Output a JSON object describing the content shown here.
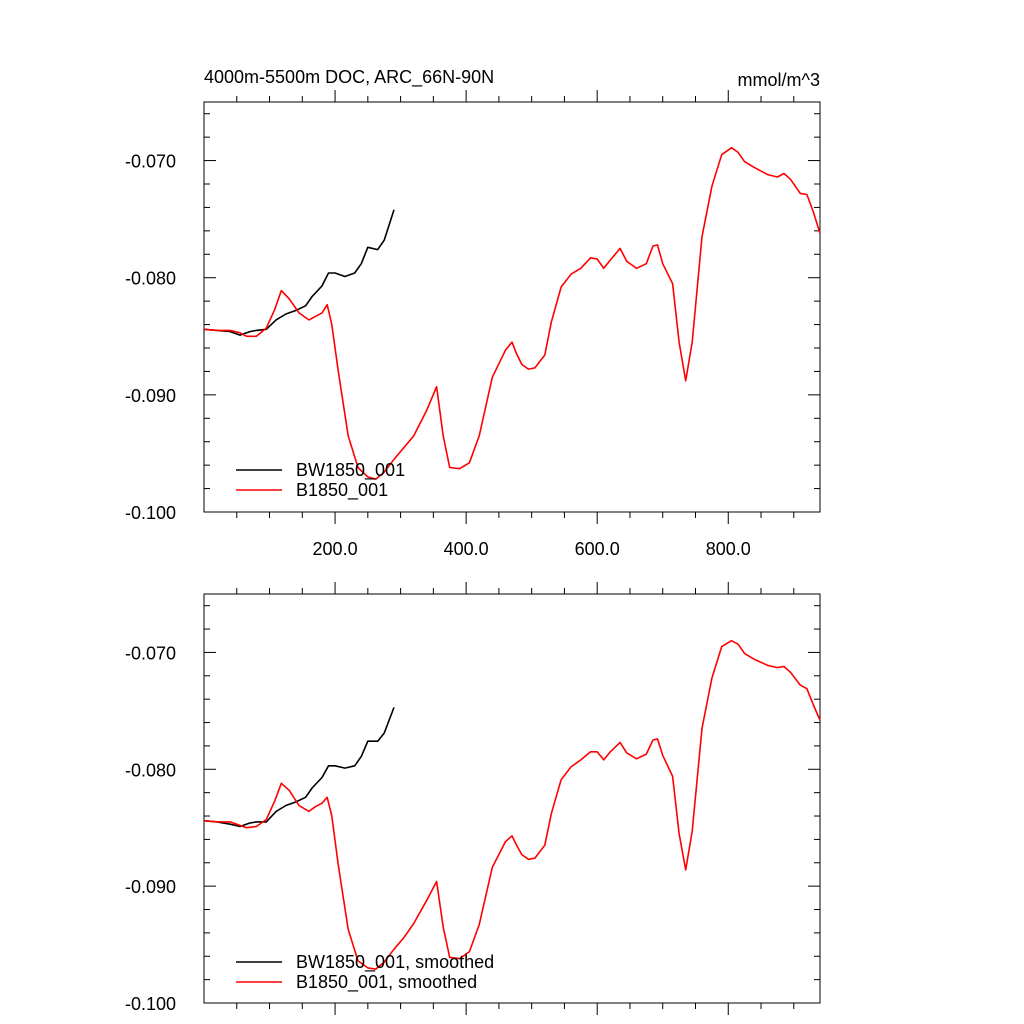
{
  "figure": {
    "title": "4000m-5500m DOC, ARC_66N-90N",
    "units": "mmol/m^3"
  },
  "chart_data": [
    {
      "type": "line",
      "title": "4000m-5500m DOC, ARC_66N-90N",
      "units_label": "mmol/m^3",
      "xlim": [
        0,
        940
      ],
      "ylim": [
        -0.1,
        -0.065
      ],
      "x_ticks": [
        200,
        400,
        600,
        800
      ],
      "x_tick_labels": [
        "200.0",
        "400.0",
        "600.0",
        "800.0"
      ],
      "y_ticks": [
        -0.1,
        -0.09,
        -0.08,
        -0.07
      ],
      "y_tick_labels": [
        "-0.100",
        "-0.090",
        "-0.080",
        "-0.070"
      ],
      "legend": "bottom-left",
      "series": [
        {
          "name": "BW1850_001",
          "color": "#000000",
          "x": [
            0,
            20,
            40,
            55,
            70,
            80,
            95,
            110,
            125,
            140,
            155,
            165,
            180,
            190,
            200,
            215,
            230,
            240,
            250,
            265,
            275,
            290
          ],
          "y": [
            -0.0844,
            -0.0845,
            -0.0846,
            -0.0849,
            -0.0846,
            -0.0845,
            -0.0844,
            -0.0836,
            -0.0831,
            -0.0828,
            -0.0824,
            -0.0816,
            -0.0807,
            -0.0796,
            -0.0796,
            -0.0799,
            -0.0796,
            -0.0788,
            -0.0774,
            -0.0776,
            -0.0768,
            -0.0742
          ]
        },
        {
          "name": "B1850_001",
          "color": "#ff0000",
          "x": [
            0,
            20,
            40,
            55,
            65,
            80,
            95,
            108,
            118,
            130,
            145,
            160,
            170,
            180,
            188,
            195,
            205,
            220,
            235,
            250,
            262,
            275,
            290,
            305,
            320,
            340,
            355,
            365,
            375,
            390,
            405,
            420,
            440,
            460,
            470,
            477,
            485,
            495,
            505,
            520,
            530,
            545,
            560,
            575,
            590,
            600,
            610,
            620,
            635,
            645,
            660,
            675,
            685,
            692,
            700,
            715,
            725,
            735,
            745,
            760,
            775,
            790,
            805,
            815,
            825,
            840,
            860,
            875,
            885,
            895,
            910,
            920,
            930,
            940
          ],
          "y": [
            -0.0844,
            -0.0845,
            -0.0845,
            -0.0847,
            -0.085,
            -0.085,
            -0.0843,
            -0.0827,
            -0.0811,
            -0.0818,
            -0.083,
            -0.0836,
            -0.0833,
            -0.083,
            -0.0823,
            -0.084,
            -0.088,
            -0.0935,
            -0.0962,
            -0.097,
            -0.0972,
            -0.0966,
            -0.0955,
            -0.0945,
            -0.0935,
            -0.0913,
            -0.0893,
            -0.0935,
            -0.0962,
            -0.0963,
            -0.0958,
            -0.0935,
            -0.0885,
            -0.0862,
            -0.0855,
            -0.0865,
            -0.0874,
            -0.0878,
            -0.0877,
            -0.0866,
            -0.0838,
            -0.0808,
            -0.0797,
            -0.0792,
            -0.0783,
            -0.0784,
            -0.0792,
            -0.0785,
            -0.0775,
            -0.0786,
            -0.0792,
            -0.0788,
            -0.0773,
            -0.0772,
            -0.0788,
            -0.0805,
            -0.0855,
            -0.0888,
            -0.0855,
            -0.0765,
            -0.0722,
            -0.0695,
            -0.0689,
            -0.0693,
            -0.0701,
            -0.0706,
            -0.0712,
            -0.0714,
            -0.0711,
            -0.0716,
            -0.0728,
            -0.0729,
            -0.0744,
            -0.0762
          ]
        }
      ]
    },
    {
      "type": "line",
      "xlim": [
        0,
        940
      ],
      "ylim": [
        -0.1,
        -0.065
      ],
      "x_ticks": [
        200,
        400,
        600,
        800
      ],
      "x_tick_labels": [],
      "y_ticks": [
        -0.1,
        -0.09,
        -0.08,
        -0.07
      ],
      "y_tick_labels": [
        "-0.100",
        "-0.090",
        "-0.080",
        "-0.070"
      ],
      "legend": "bottom-left",
      "series": [
        {
          "name": "BW1850_001, smoothed",
          "color": "#000000",
          "x": [
            0,
            20,
            40,
            55,
            70,
            80,
            95,
            110,
            125,
            140,
            155,
            165,
            180,
            190,
            200,
            215,
            230,
            240,
            250,
            265,
            275,
            290
          ],
          "y": [
            -0.0844,
            -0.0845,
            -0.0847,
            -0.0849,
            -0.0846,
            -0.0845,
            -0.0845,
            -0.0836,
            -0.0831,
            -0.0828,
            -0.0824,
            -0.0816,
            -0.0807,
            -0.0797,
            -0.0797,
            -0.0799,
            -0.0797,
            -0.0789,
            -0.0776,
            -0.0776,
            -0.0769,
            -0.0747
          ]
        },
        {
          "name": "B1850_001, smoothed",
          "color": "#ff0000",
          "x": [
            0,
            20,
            40,
            55,
            65,
            80,
            95,
            108,
            118,
            130,
            145,
            160,
            170,
            180,
            188,
            195,
            205,
            220,
            235,
            250,
            262,
            275,
            290,
            305,
            320,
            340,
            355,
            365,
            375,
            390,
            405,
            420,
            440,
            460,
            470,
            477,
            485,
            495,
            505,
            520,
            530,
            545,
            560,
            575,
            590,
            600,
            610,
            620,
            635,
            645,
            660,
            675,
            685,
            692,
            700,
            715,
            725,
            735,
            745,
            760,
            775,
            790,
            805,
            815,
            825,
            840,
            860,
            875,
            885,
            895,
            910,
            920,
            930,
            940
          ],
          "y": [
            -0.0844,
            -0.0845,
            -0.0845,
            -0.0848,
            -0.085,
            -0.0849,
            -0.0843,
            -0.0827,
            -0.0812,
            -0.0818,
            -0.0831,
            -0.0836,
            -0.0832,
            -0.0829,
            -0.0824,
            -0.084,
            -0.0882,
            -0.0937,
            -0.0964,
            -0.097,
            -0.0971,
            -0.0965,
            -0.0954,
            -0.0944,
            -0.0932,
            -0.0912,
            -0.0896,
            -0.0935,
            -0.0961,
            -0.0962,
            -0.0956,
            -0.0933,
            -0.0884,
            -0.0862,
            -0.0857,
            -0.0865,
            -0.0873,
            -0.0877,
            -0.0876,
            -0.0865,
            -0.0838,
            -0.0809,
            -0.0798,
            -0.0792,
            -0.0785,
            -0.0785,
            -0.0792,
            -0.0785,
            -0.0777,
            -0.0786,
            -0.0791,
            -0.0787,
            -0.0775,
            -0.0774,
            -0.0788,
            -0.0806,
            -0.0855,
            -0.0886,
            -0.0853,
            -0.0765,
            -0.0722,
            -0.0695,
            -0.069,
            -0.0693,
            -0.0701,
            -0.0706,
            -0.0711,
            -0.0713,
            -0.0712,
            -0.0717,
            -0.0728,
            -0.0731,
            -0.0745,
            -0.0758
          ]
        }
      ]
    }
  ]
}
